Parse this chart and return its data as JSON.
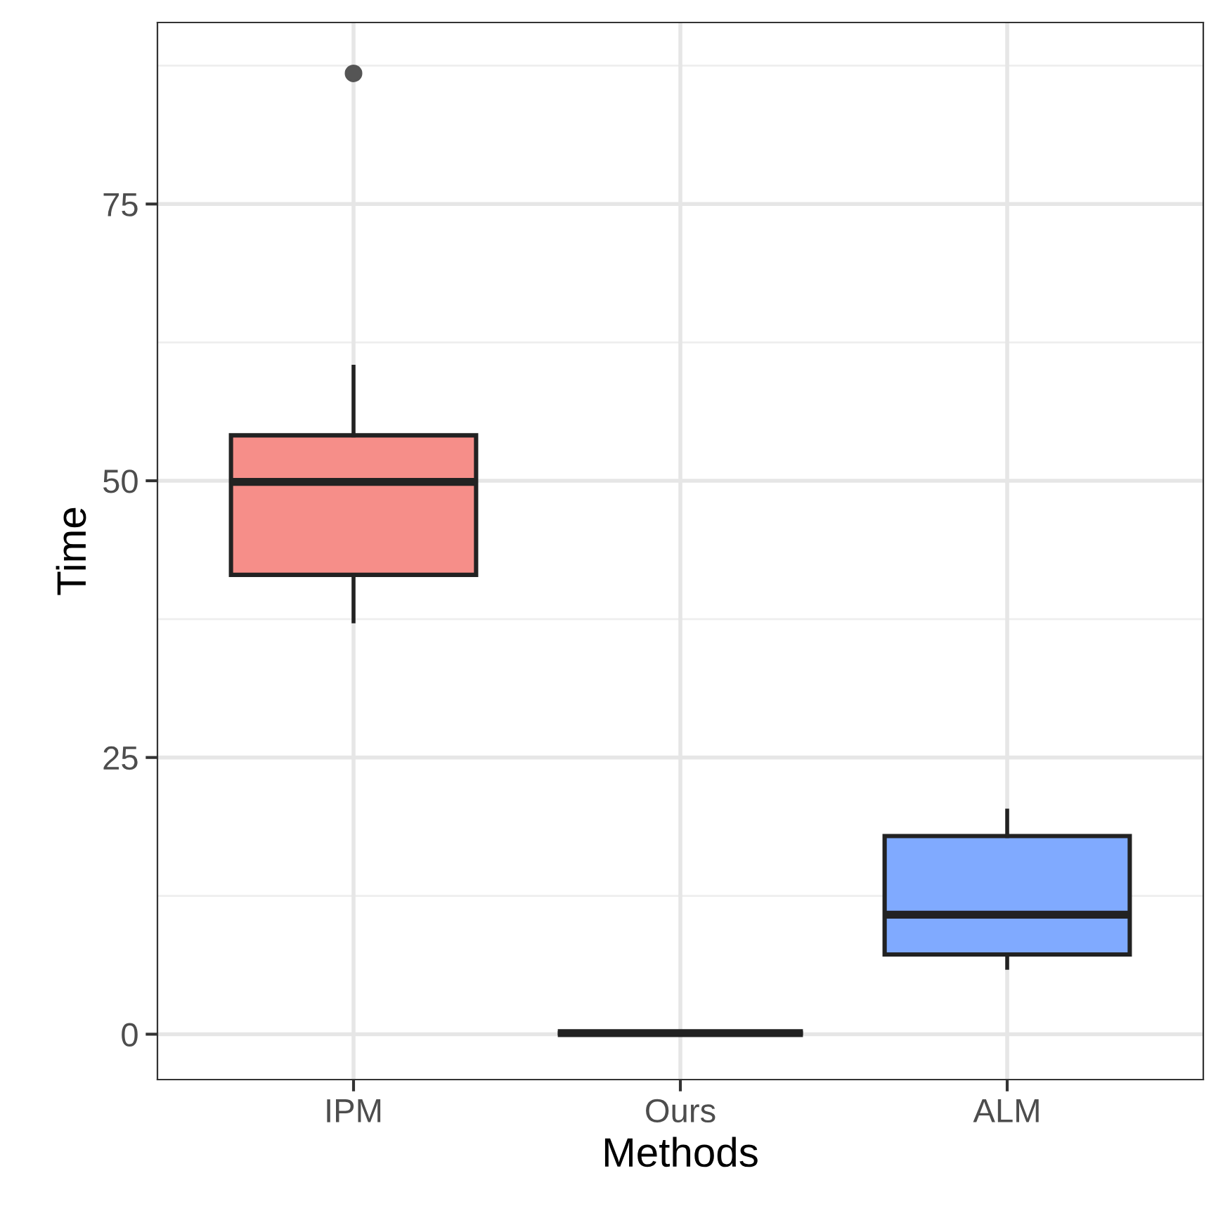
{
  "chart_data": {
    "type": "box",
    "xlabel": "Methods",
    "ylabel": "Time",
    "categories": [
      "IPM",
      "Ours",
      "ALM"
    ],
    "colors": [
      "#f68e89",
      "#222222",
      "#80aaff"
    ],
    "boxes": [
      {
        "low": 37.3,
        "q1": 41.5,
        "median": 49.9,
        "q3": 54.1,
        "high": 60.3,
        "outliers": [
          86.8
        ]
      },
      {
        "low": 0.1,
        "q1": 0.1,
        "median": 0.1,
        "q3": 0.1,
        "high": 0.1
      },
      {
        "low": 6.0,
        "q1": 7.2,
        "median": 10.8,
        "q3": 17.9,
        "high": 20.2
      }
    ],
    "ylim": [
      -4.1,
      91.4
    ],
    "yticks": [
      0,
      25,
      50,
      75
    ],
    "grid": true
  }
}
